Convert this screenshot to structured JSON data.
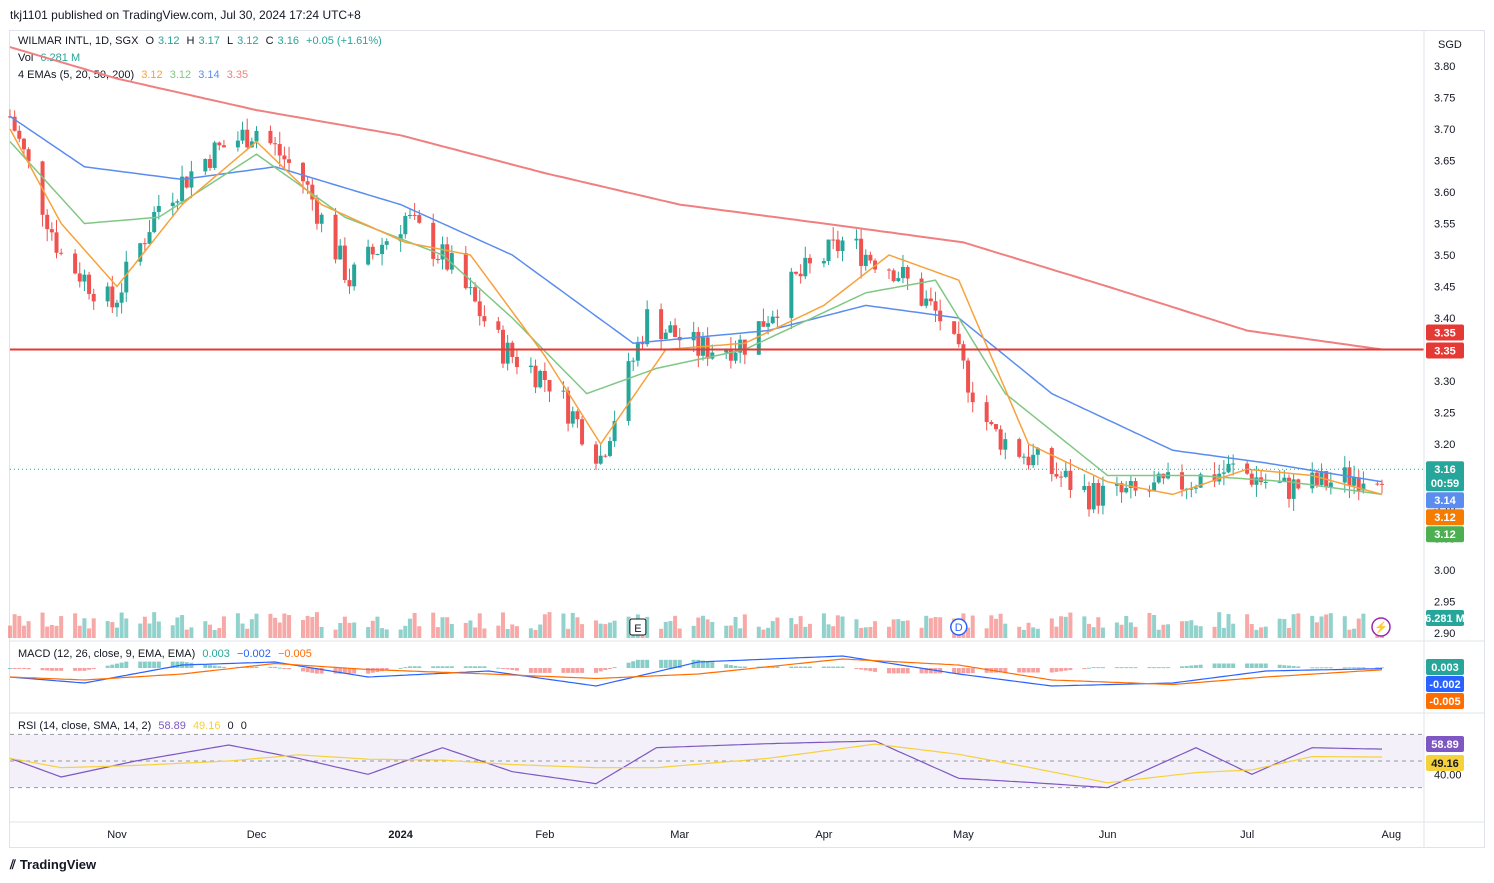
{
  "header": {
    "published": "tkj1101 published on TradingView.com, Jul 30, 2024 17:24 UTC+8"
  },
  "footer": {
    "brand": "TradingView"
  },
  "legend": {
    "symbol": "WILMAR INTL, 1D, SGX",
    "o_label": "O",
    "o": "3.12",
    "h_label": "H",
    "h": "3.17",
    "l_label": "L",
    "l": "3.12",
    "c_label": "C",
    "c": "3.16",
    "change": "+0.05 (+1.61%)",
    "vol_label": "Vol",
    "vol": "6.281 M",
    "ema_label": "4 EMAs (5, 20, 50, 200)",
    "ema5": "3.12",
    "ema20": "3.12",
    "ema50": "3.14",
    "ema200": "3.35",
    "macd_label": "MACD (12, 26, close, 9, EMA, EMA)",
    "macd_hist": "0.003",
    "macd_line": "−0.002",
    "macd_signal": "−0.005",
    "rsi_label": "RSI (14, close, SMA, 14, 2)",
    "rsi": "58.89",
    "rsi_ma": "49.16",
    "rsi_up": "0",
    "rsi_dn": "0"
  },
  "axis": {
    "currency": "SGD",
    "price_ticks": [
      "3.80",
      "3.75",
      "3.70",
      "3.65",
      "3.60",
      "3.55",
      "3.50",
      "3.45",
      "3.40",
      "3.35",
      "3.30",
      "3.25",
      "3.20",
      "3.15",
      "3.10",
      "3.05",
      "3.00",
      "2.95",
      "2.90"
    ],
    "time_labels": [
      "Nov",
      "Dec",
      "2024",
      "Feb",
      "Mar",
      "Apr",
      "May",
      "Jun",
      "Jul",
      "Aug"
    ],
    "rsi_tick": "40.00"
  },
  "price_badges": {
    "hline": "3.35",
    "ema200": "3.35",
    "last": "3.16",
    "countdown": "00:59",
    "ema50": "3.14",
    "ema5": "3.12",
    "ema20": "3.12",
    "volume": "6.281 M",
    "macd_hist": "0.003",
    "macd_line": "-0.002",
    "macd_signal": "-0.005",
    "rsi": "58.89",
    "rsi_ma": "49.16"
  },
  "markers": {
    "earnings": "E",
    "dividend": "D"
  },
  "colors": {
    "up": "#26a69a",
    "down": "#ef5350",
    "ema5": "#f7a23b",
    "ema20": "#81c784",
    "ema50": "#5b8def",
    "ema200": "#f08080",
    "hline": "#e53935",
    "macd": "#2962ff",
    "signal": "#ff6d00",
    "rsi": "#7e57c2",
    "rsi_ma": "#f5d13b"
  },
  "chart_data": {
    "type": "candlestick",
    "x_range": [
      "2023-10-09",
      "2024-07-30"
    ],
    "ylim": [
      2.9,
      3.82
    ],
    "horizontal_line": 3.35,
    "series": [
      {
        "name": "price_close",
        "x": [
          "2023-10-09",
          "2023-10-20",
          "2023-10-31",
          "2023-11-10",
          "2023-11-21",
          "2023-12-01",
          "2023-12-11",
          "2023-12-21",
          "2024-01-02",
          "2024-01-12",
          "2024-01-23",
          "2024-02-02",
          "2024-02-13",
          "2024-02-23",
          "2024-03-05",
          "2024-03-15",
          "2024-03-26",
          "2024-04-05",
          "2024-04-16",
          "2024-04-26",
          "2024-05-07",
          "2024-05-17",
          "2024-05-28",
          "2024-06-07",
          "2024-06-18",
          "2024-06-28",
          "2024-07-09",
          "2024-07-19",
          "2024-07-30"
        ],
        "values": [
          3.72,
          3.5,
          3.42,
          3.58,
          3.66,
          3.7,
          3.62,
          3.46,
          3.56,
          3.48,
          3.35,
          3.3,
          3.18,
          3.4,
          3.35,
          3.36,
          3.46,
          3.52,
          3.48,
          3.4,
          3.22,
          3.17,
          3.12,
          3.12,
          3.14,
          3.16,
          3.13,
          3.14,
          3.16
        ]
      },
      {
        "name": "EMA 5",
        "x": [
          "2023-10-09",
          "2023-10-20",
          "2023-11-01",
          "2023-11-15",
          "2023-12-01",
          "2023-12-15",
          "2024-01-02",
          "2024-01-16",
          "2024-02-01",
          "2024-02-13",
          "2024-02-27",
          "2024-03-15",
          "2024-04-01",
          "2024-04-15",
          "2024-04-30",
          "2024-05-15",
          "2024-06-01",
          "2024-06-15",
          "2024-07-01",
          "2024-07-15",
          "2024-07-30"
        ],
        "values": [
          3.7,
          3.55,
          3.45,
          3.58,
          3.68,
          3.58,
          3.52,
          3.5,
          3.34,
          3.2,
          3.35,
          3.36,
          3.42,
          3.5,
          3.46,
          3.2,
          3.14,
          3.12,
          3.16,
          3.15,
          3.12
        ]
      },
      {
        "name": "EMA 20",
        "x": [
          "2023-10-09",
          "2023-10-25",
          "2023-11-10",
          "2023-12-01",
          "2023-12-20",
          "2024-01-10",
          "2024-01-25",
          "2024-02-10",
          "2024-02-25",
          "2024-03-15",
          "2024-04-10",
          "2024-04-25",
          "2024-05-10",
          "2024-06-01",
          "2024-06-20",
          "2024-07-10",
          "2024-07-30"
        ],
        "values": [
          3.68,
          3.55,
          3.56,
          3.66,
          3.56,
          3.5,
          3.4,
          3.28,
          3.32,
          3.35,
          3.44,
          3.46,
          3.28,
          3.15,
          3.15,
          3.14,
          3.12
        ]
      },
      {
        "name": "EMA 50",
        "x": [
          "2023-10-09",
          "2023-10-25",
          "2023-11-15",
          "2023-12-05",
          "2024-01-01",
          "2024-01-25",
          "2024-02-20",
          "2024-03-20",
          "2024-04-10",
          "2024-04-30",
          "2024-05-20",
          "2024-06-15",
          "2024-07-05",
          "2024-07-30"
        ],
        "values": [
          3.72,
          3.64,
          3.62,
          3.64,
          3.58,
          3.5,
          3.36,
          3.38,
          3.42,
          3.4,
          3.28,
          3.19,
          3.17,
          3.14
        ]
      },
      {
        "name": "EMA 200",
        "x": [
          "2023-10-09",
          "2023-11-01",
          "2023-12-01",
          "2024-01-01",
          "2024-02-01",
          "2024-03-01",
          "2024-04-01",
          "2024-05-01",
          "2024-06-01",
          "2024-07-01",
          "2024-07-30"
        ],
        "values": [
          3.83,
          3.78,
          3.73,
          3.69,
          3.63,
          3.58,
          3.55,
          3.52,
          3.45,
          3.38,
          3.35
        ]
      },
      {
        "name": "MACD",
        "x": [
          "2023-10-09",
          "2023-10-25",
          "2023-11-15",
          "2023-12-05",
          "2023-12-25",
          "2024-01-20",
          "2024-02-12",
          "2024-03-05",
          "2024-04-05",
          "2024-04-30",
          "2024-05-20",
          "2024-06-15",
          "2024-07-05",
          "2024-07-30"
        ],
        "values": [
          -0.03,
          -0.05,
          0.01,
          0.02,
          -0.03,
          -0.01,
          -0.06,
          0.02,
          0.04,
          -0.02,
          -0.06,
          -0.05,
          -0.01,
          -0.002
        ]
      },
      {
        "name": "RSI",
        "x": [
          "2023-10-09",
          "2023-10-20",
          "2023-11-05",
          "2023-11-25",
          "2023-12-10",
          "2023-12-25",
          "2024-01-10",
          "2024-01-25",
          "2024-02-12",
          "2024-02-25",
          "2024-03-20",
          "2024-04-12",
          "2024-04-30",
          "2024-05-15",
          "2024-06-01",
          "2024-06-20",
          "2024-07-02",
          "2024-07-15",
          "2024-07-30"
        ],
        "values": [
          52,
          38,
          50,
          62,
          52,
          40,
          60,
          42,
          33,
          60,
          63,
          65,
          37,
          34,
          30,
          60,
          40,
          60,
          58.89
        ]
      }
    ]
  }
}
